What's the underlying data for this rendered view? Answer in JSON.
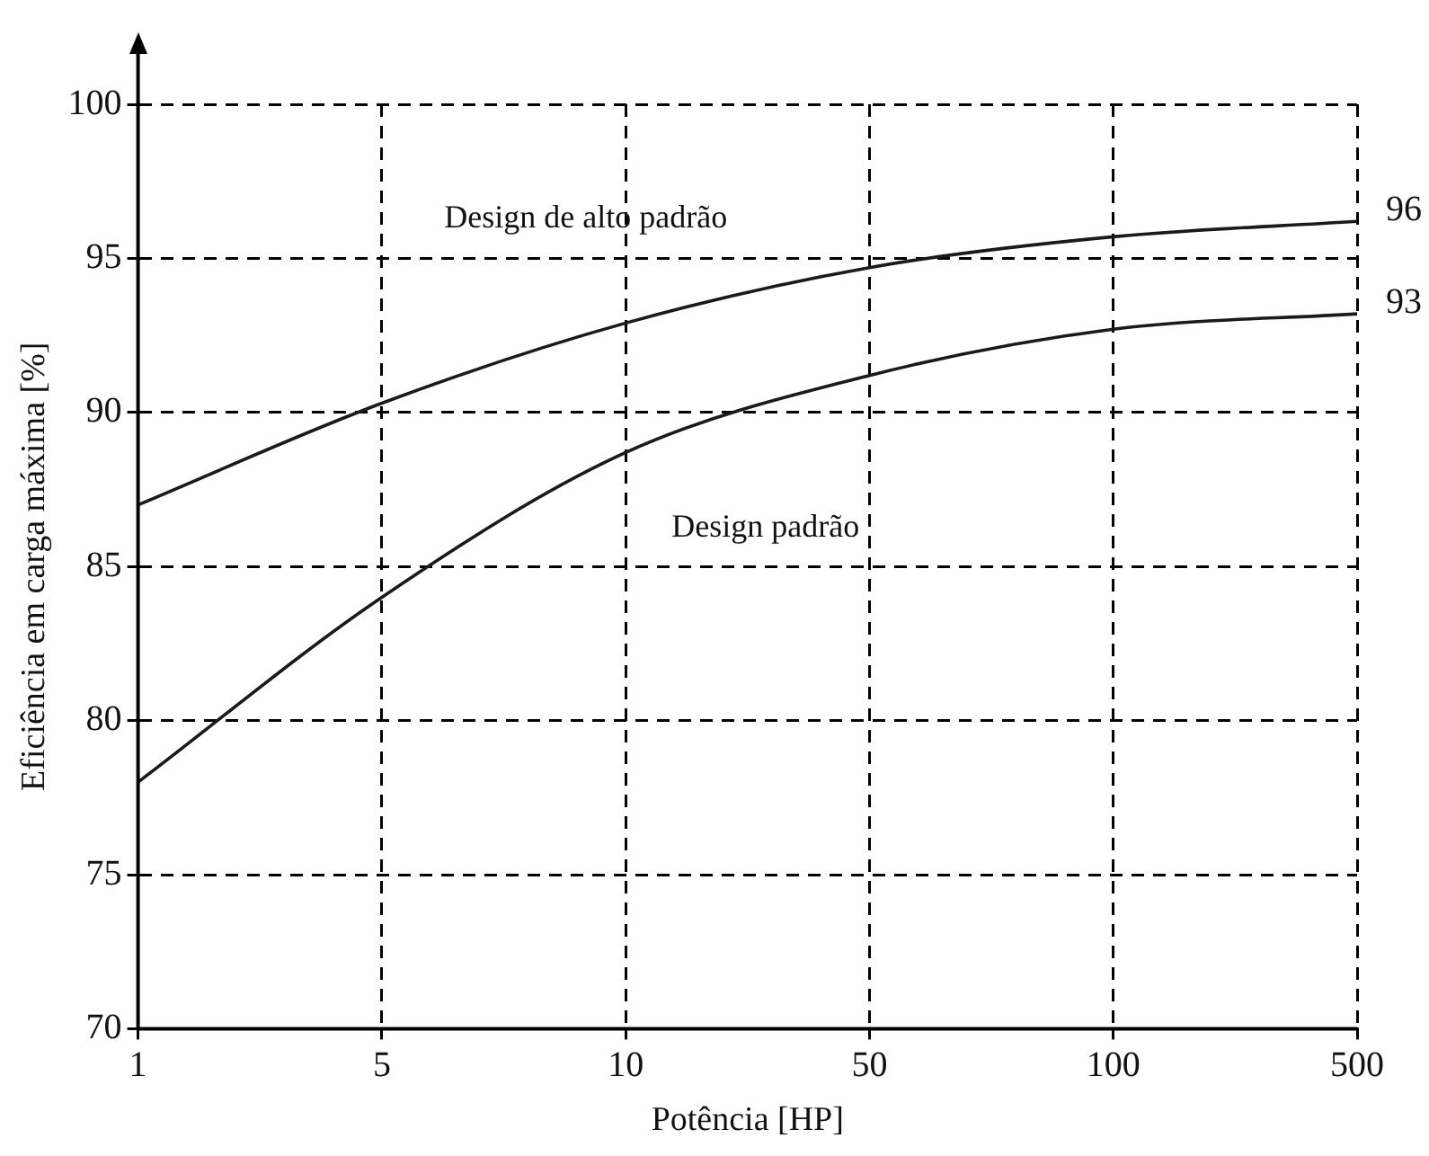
{
  "chart_data": {
    "type": "line",
    "xlabel": "Potência [HP]",
    "ylabel": "Eficiência em carga máxima [%]",
    "categories": [
      "1",
      "5",
      "10",
      "50",
      "100",
      "500"
    ],
    "series": [
      {
        "name": "Design de alto padrão",
        "color": "#1a1a1a",
        "values": [
          87,
          90.3,
          92.9,
          94.7,
          95.7,
          96.2
        ]
      },
      {
        "name": "Design padrão",
        "color": "#1a1a1a",
        "values": [
          78,
          84,
          88.7,
          91.2,
          92.7,
          93.2
        ]
      }
    ],
    "ylim": [
      70,
      100
    ],
    "yticks": [
      70,
      75,
      80,
      85,
      90,
      95,
      100
    ],
    "grid": true,
    "legend": false,
    "marker": "none",
    "line_style": "solid",
    "annotations": [
      {
        "text": "96",
        "x": "500",
        "y": 96.2
      },
      {
        "text": "93",
        "x": "500",
        "y": 93.2
      }
    ]
  }
}
